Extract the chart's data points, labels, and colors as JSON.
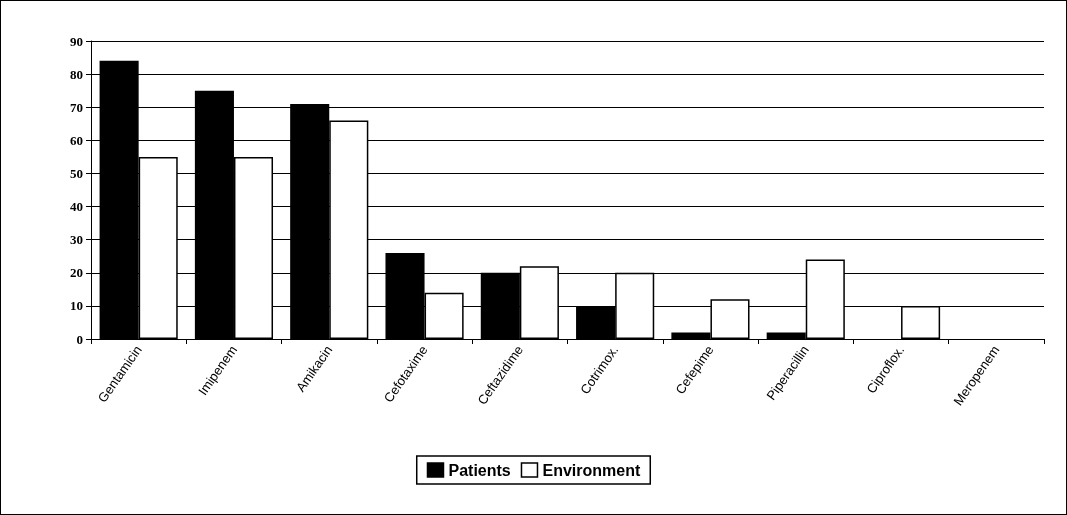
{
  "chart_data": {
    "type": "bar",
    "categories": [
      "Gentamicin",
      "Imipenem",
      "Amikacin",
      "Cefotaxime",
      "Ceftazidime",
      "Cotrimox.",
      "Cefepime",
      "Piperacillin",
      "Ciproflox.",
      "Meropenem"
    ],
    "series": [
      {
        "name": "Patients",
        "color": "#000000",
        "values": [
          84,
          75,
          71,
          26,
          20,
          10,
          2,
          2,
          0,
          0
        ]
      },
      {
        "name": "Environment",
        "color": "#ffffff",
        "values": [
          55,
          55,
          66,
          14,
          22,
          20,
          12,
          24,
          10,
          0
        ]
      }
    ],
    "ylim": [
      0,
      90
    ],
    "yticks": [
      0,
      10,
      20,
      30,
      40,
      50,
      60,
      70,
      80,
      90
    ],
    "grid": true,
    "legend": "bottom"
  }
}
